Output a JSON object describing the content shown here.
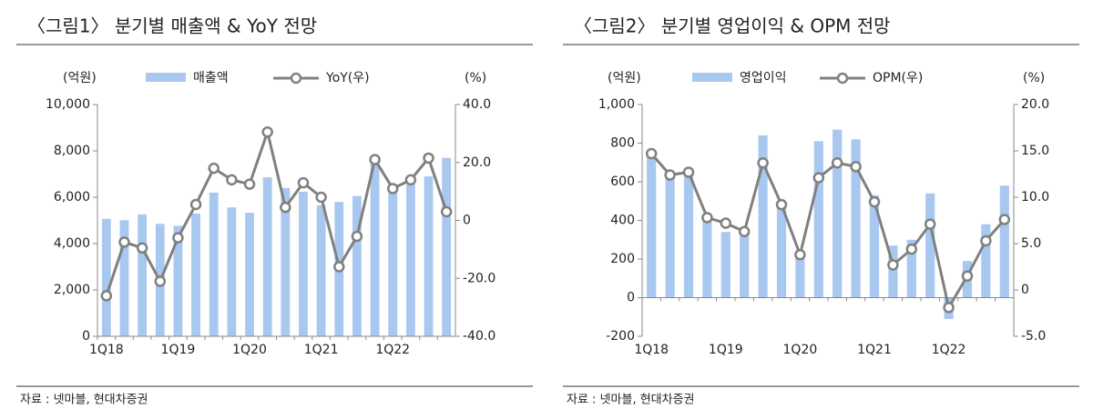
{
  "chart_data": [
    {
      "type": "bar-line",
      "title": "〈그림1〉 분기별 매출액 & YoY 전망",
      "y_label": "(억원)",
      "y2_label": "(%)",
      "source": "자료 : 넷마블, 현대차증권",
      "categories": [
        "1Q18",
        null,
        null,
        null,
        "1Q19",
        null,
        null,
        null,
        "1Q20",
        null,
        null,
        null,
        "1Q21",
        null,
        null,
        null,
        "1Q22",
        null,
        null,
        null
      ],
      "series": [
        {
          "name": "매출액",
          "type": "bar",
          "color": "#a9c8f0",
          "values": [
            5070,
            5010,
            5260,
            4850,
            4770,
            5300,
            6200,
            5560,
            5330,
            6860,
            6400,
            6240,
            5660,
            5800,
            6050,
            7650,
            6320,
            6600,
            6900,
            7700
          ]
        },
        {
          "name": "YoY(우)",
          "type": "line",
          "axis": "y2",
          "color": "#808080",
          "values": [
            -26,
            -7.5,
            -9.5,
            -21,
            -6,
            5.5,
            18,
            14,
            12.5,
            30.5,
            4.5,
            13,
            8,
            -16,
            -5.5,
            21,
            11,
            14,
            21.5,
            3
          ]
        }
      ],
      "ylim": [
        0,
        10000
      ],
      "yticks": [
        0,
        {
          "value": 2000,
          "label": "2,000"
        },
        {
          "value": 4000,
          "label": "4,000"
        },
        {
          "value": 6000,
          "label": "6,000"
        },
        {
          "value": 8000,
          "label": "8,000"
        },
        {
          "value": 10000,
          "label": "10,000"
        }
      ],
      "y2lim": [
        -40,
        40
      ],
      "y2ticks": [
        {
          "value": -40,
          "label": "-40.0"
        },
        {
          "value": -20,
          "label": "-20.0"
        },
        0,
        {
          "value": 20,
          "label": "20.0"
        },
        {
          "value": 40,
          "label": "40.0"
        }
      ]
    },
    {
      "type": "bar-line",
      "title": "〈그림2〉 분기별 영업이익 & OPM 전망",
      "y_label": "(억원)",
      "y2_label": "(%)",
      "source": "자료 : 넷마블, 현대차증권",
      "categories": [
        "1Q18",
        null,
        null,
        null,
        "1Q19",
        null,
        null,
        null,
        "1Q20",
        null,
        null,
        null,
        "1Q21",
        null,
        null,
        null,
        "1Q22",
        null,
        null,
        null
      ],
      "series": [
        {
          "name": "영업이익",
          "type": "bar",
          "color": "#a9c8f0",
          "values": [
            740,
            640,
            640,
            410,
            340,
            330,
            840,
            500,
            220,
            810,
            870,
            820,
            530,
            270,
            300,
            540,
            -110,
            190,
            380,
            580
          ]
        },
        {
          "name": "OPM(우)",
          "type": "line",
          "axis": "y2",
          "color": "#808080",
          "values": [
            14.7,
            12.4,
            12.7,
            7.8,
            7.2,
            6.3,
            13.7,
            9.2,
            3.8,
            12.1,
            13.7,
            13.3,
            9.5,
            2.7,
            4.4,
            7.1,
            -1.9,
            1.5,
            5.3,
            7.6
          ]
        }
      ],
      "ylim": [
        -200,
        1000
      ],
      "yticks": [
        -200,
        0,
        200,
        400,
        600,
        800,
        {
          "value": 1000,
          "label": "1,000"
        }
      ],
      "y2lim": [
        -5,
        20
      ],
      "y2ticks": [
        {
          "value": -5,
          "label": "-5.0"
        },
        0,
        {
          "value": 5,
          "label": "5.0"
        },
        {
          "value": 10,
          "label": "10.0"
        },
        {
          "value": 15,
          "label": "15.0"
        },
        {
          "value": 20,
          "label": "20.0"
        }
      ]
    }
  ]
}
